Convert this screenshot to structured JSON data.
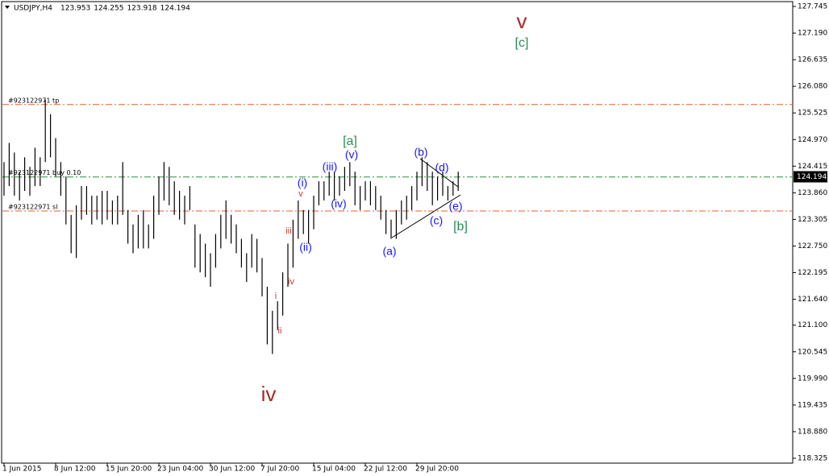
{
  "chart_data": {
    "type": "ohlc",
    "title": "USDJPY,H4",
    "header_values": [
      123.953,
      124.255,
      123.918,
      124.194
    ],
    "color": "#000000",
    "ylim": [
      118.224,
      127.846
    ],
    "yticks": [
      127.745,
      {
        "value": 127.19,
        "label": "127.190"
      },
      126.635,
      {
        "value": 126.08,
        "label": "126.080"
      },
      125.525,
      {
        "value": 124.97,
        "label": "124.970"
      },
      124.415,
      {
        "value": 123.86,
        "label": "123.860"
      },
      123.305,
      {
        "value": 122.75,
        "label": "122.750"
      },
      122.195,
      {
        "value": 121.64,
        "label": "121.640"
      },
      {
        "value": 121.1,
        "label": "121.100"
      },
      120.545,
      {
        "value": 119.99,
        "label": "119.990"
      },
      119.435,
      {
        "value": 118.88,
        "label": "118.880"
      },
      118.325
    ],
    "categories": [
      "1 Jun 2015",
      null,
      null,
      null,
      null,
      null,
      null,
      null,
      null,
      null,
      "8 Jun 12:00",
      null,
      null,
      null,
      null,
      null,
      null,
      null,
      null,
      null,
      "15 Jun 20:00",
      null,
      null,
      null,
      null,
      null,
      null,
      null,
      null,
      null,
      "23 Jun 04:00",
      null,
      null,
      null,
      null,
      null,
      null,
      null,
      null,
      null,
      "30 Jun 12:00",
      null,
      null,
      null,
      null,
      null,
      null,
      null,
      null,
      null,
      "7 Jul 20:00",
      null,
      null,
      null,
      null,
      null,
      null,
      null,
      null,
      null,
      "15 Jul 04:00",
      null,
      null,
      null,
      null,
      null,
      null,
      null,
      null,
      null,
      "22 Jul 12:00",
      null,
      null,
      null,
      null,
      null,
      null,
      null,
      null,
      null,
      "29 Jul 20:00",
      null,
      null,
      null,
      null,
      null,
      null,
      null,
      null
    ],
    "high": [
      124.5,
      124.9,
      124.7,
      124.3,
      124.6,
      124.4,
      124.8,
      124.6,
      125.8,
      125.5,
      125.0,
      124.5,
      124.2,
      123.4,
      123.6,
      124.0,
      124.0,
      123.8,
      123.8,
      123.9,
      123.9,
      123.7,
      123.8,
      124.5,
      123.5,
      123.2,
      123.4,
      123.5,
      123.2,
      123.8,
      124.2,
      124.5,
      124.4,
      124.1,
      123.9,
      123.8,
      124.0,
      123.2,
      123.0,
      122.8,
      122.6,
      123.0,
      123.4,
      123.7,
      123.4,
      123.2,
      122.9,
      122.6,
      123.0,
      122.9,
      122.5,
      121.9,
      121.4,
      121.6,
      122.2,
      122.8,
      123.3,
      123.7,
      123.5,
      123.5,
      123.8,
      124.1,
      124.1,
      124.3,
      124.3,
      124.2,
      124.4,
      124.5,
      124.3,
      124.0,
      124.1,
      124.1,
      124.0,
      123.8,
      123.5,
      123.3,
      123.5,
      123.7,
      123.8,
      124.0,
      124.3,
      124.6,
      124.5,
      124.3,
      124.2,
      124.3,
      124.0,
      124.1,
      124.3
    ],
    "low": [
      123.8,
      124.0,
      123.8,
      123.7,
      123.9,
      123.8,
      124.0,
      124.0,
      124.5,
      124.6,
      124.2,
      123.8,
      123.2,
      122.6,
      122.5,
      123.3,
      123.4,
      123.2,
      123.3,
      123.2,
      123.3,
      123.2,
      123.2,
      123.4,
      122.8,
      122.6,
      122.7,
      122.7,
      122.7,
      122.9,
      123.4,
      123.7,
      123.6,
      123.4,
      123.3,
      123.2,
      123.5,
      122.3,
      122.2,
      122.1,
      121.9,
      122.3,
      122.7,
      122.9,
      122.8,
      122.6,
      122.3,
      122.0,
      122.3,
      122.2,
      121.7,
      120.7,
      120.5,
      121.0,
      121.3,
      121.9,
      122.3,
      122.9,
      123.0,
      122.8,
      123.1,
      123.6,
      123.7,
      123.8,
      123.7,
      123.8,
      123.9,
      124.0,
      123.6,
      123.5,
      123.7,
      123.6,
      123.5,
      123.3,
      123.0,
      122.9,
      122.9,
      123.2,
      123.3,
      123.5,
      123.7,
      124.0,
      123.9,
      123.6,
      123.7,
      123.8,
      123.7,
      123.8,
      123.9
    ],
    "orders": [
      {
        "label": "#923122971 tp",
        "price": 125.7,
        "color": "#e0602a"
      },
      {
        "label": "#923122971 buy 0.10",
        "price": 124.19,
        "color": "#2e8b3a"
      },
      {
        "label": "#923122971 sl",
        "price": 123.48,
        "color": "#e0602a"
      }
    ],
    "last_price": 124.194,
    "annotations": [
      {
        "text": "v",
        "color": "#a52a2a"
      },
      {
        "text": "[c]",
        "color": "#2e8b57"
      },
      {
        "text": "iv",
        "color": "#a52a2a"
      },
      {
        "text": "[a]",
        "color": "#2e8b57"
      },
      {
        "text": "[b]",
        "color": "#2e8b57"
      },
      {
        "text": "(i)",
        "color": "#1a1ae6"
      },
      {
        "text": "(ii)",
        "color": "#1a1ae6"
      },
      {
        "text": "(iii)",
        "color": "#1a1ae6"
      },
      {
        "text": "(iv)",
        "color": "#1a1ae6"
      },
      {
        "text": "(v)",
        "color": "#1a1ae6"
      },
      {
        "text": "(a)",
        "color": "#1a1ae6"
      },
      {
        "text": "(b)",
        "color": "#1a1ae6"
      },
      {
        "text": "(c)",
        "color": "#1a1ae6"
      },
      {
        "text": "(d)",
        "color": "#1a1ae6"
      },
      {
        "text": "(e)",
        "color": "#1a1ae6"
      },
      {
        "text": "i",
        "color": "#c0392b"
      },
      {
        "text": "ii",
        "color": "#c0392b"
      },
      {
        "text": "iii",
        "color": "#c0392b"
      },
      {
        "text": "iv",
        "color": "#c0392b"
      },
      {
        "text": "v",
        "color": "#c0392b"
      }
    ]
  }
}
